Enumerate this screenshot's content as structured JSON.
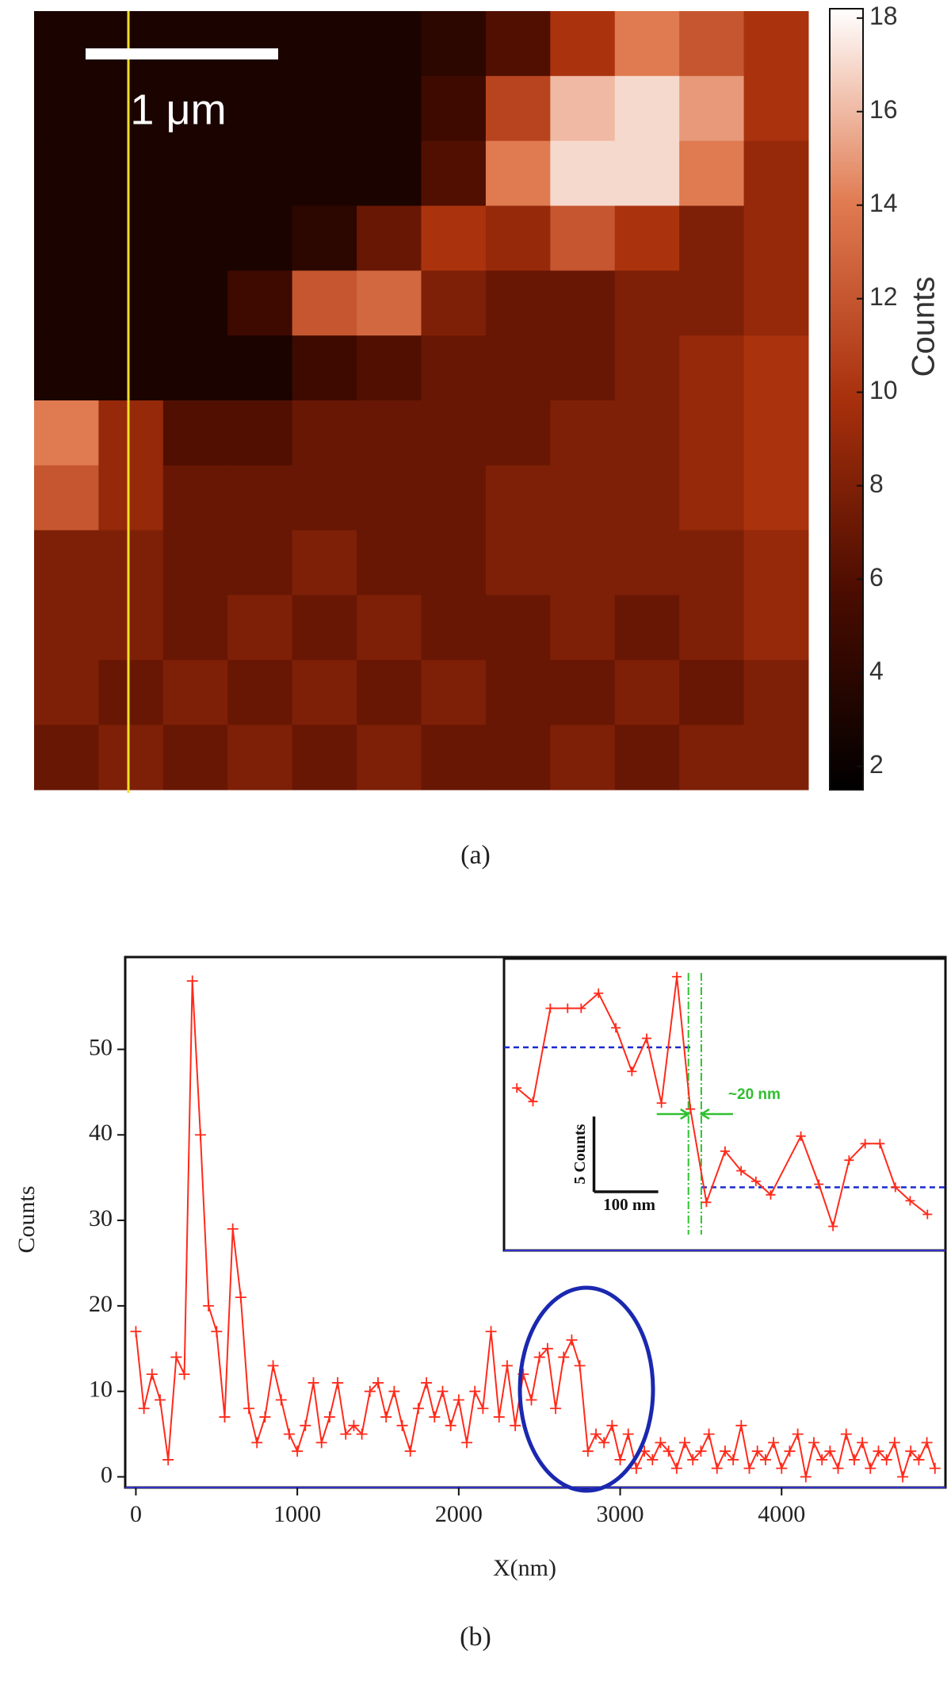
{
  "chart_data": [
    {
      "type": "heatmap",
      "panel_label": "(a)",
      "scale_bar_label": "1 μm",
      "colorbar_label": "Counts",
      "clim": [
        1.5,
        18.2
      ],
      "colorbar_ticks": [
        2,
        4,
        6,
        8,
        10,
        12,
        14,
        16,
        18
      ],
      "colormap": [
        "#000000",
        "#4a0c00",
        "#a8300c",
        "#e07a50",
        "#ffffff"
      ],
      "line_color": "#f0e020",
      "z": [
        [
          3,
          3,
          3,
          3,
          3,
          3,
          4,
          6,
          10,
          14,
          12,
          10
        ],
        [
          3,
          3,
          3,
          3,
          3,
          3,
          5,
          11,
          16,
          17,
          15,
          10
        ],
        [
          3,
          3,
          3,
          3,
          3,
          3,
          6,
          14,
          17,
          17,
          14,
          9
        ],
        [
          3,
          3,
          3,
          3,
          4,
          7,
          10,
          9,
          12,
          10,
          8,
          9
        ],
        [
          3,
          3,
          3,
          5,
          12,
          13,
          8,
          7,
          7,
          8,
          8,
          9
        ],
        [
          3,
          3,
          3,
          3,
          5,
          6,
          7,
          7,
          7,
          8,
          9,
          10
        ],
        [
          14,
          9,
          6,
          6,
          7,
          7,
          7,
          7,
          8,
          8,
          9,
          10
        ],
        [
          12,
          9,
          7,
          7,
          7,
          7,
          7,
          8,
          8,
          8,
          9,
          10
        ],
        [
          8,
          8,
          7,
          7,
          8,
          7,
          7,
          8,
          8,
          8,
          8,
          9
        ],
        [
          8,
          8,
          7,
          8,
          7,
          8,
          7,
          7,
          8,
          7,
          8,
          9
        ],
        [
          8,
          7,
          8,
          7,
          8,
          7,
          8,
          7,
          7,
          8,
          7,
          8
        ],
        [
          7,
          8,
          7,
          8,
          7,
          8,
          7,
          7,
          8,
          7,
          8,
          8
        ]
      ]
    },
    {
      "type": "line",
      "panel_label": "(b)",
      "x_label": "X(nm)",
      "y_label": "Counts",
      "color": "#ff2a1a",
      "xlim": [
        -66,
        5015
      ],
      "ylim": [
        -1.25,
        60.8
      ],
      "xticks": [
        0,
        1000,
        2000,
        3000,
        4000
      ],
      "yticks": [
        0,
        10,
        20,
        30,
        40,
        50
      ],
      "x": [
        0,
        50,
        100,
        150,
        200,
        250,
        300,
        350,
        400,
        450,
        500,
        550,
        600,
        650,
        700,
        750,
        800,
        850,
        900,
        950,
        1000,
        1050,
        1100,
        1150,
        1200,
        1250,
        1300,
        1350,
        1400,
        1450,
        1500,
        1550,
        1600,
        1650,
        1700,
        1750,
        1800,
        1850,
        1900,
        1950,
        2000,
        2050,
        2100,
        2150,
        2200,
        2250,
        2300,
        2350,
        2400,
        2450,
        2500,
        2550,
        2600,
        2650,
        2700,
        2750,
        2800,
        2850,
        2900,
        2950,
        3000,
        3050,
        3100,
        3150,
        3200,
        3250,
        3300,
        3350,
        3400,
        3450,
        3500,
        3550,
        3600,
        3650,
        3700,
        3750,
        3800,
        3850,
        3900,
        3950,
        4000,
        4050,
        4100,
        4150,
        4200,
        4250,
        4300,
        4350,
        4400,
        4450,
        4500,
        4550,
        4600,
        4650,
        4700,
        4750,
        4800,
        4850,
        4900,
        4950
      ],
      "values": [
        17,
        8,
        12,
        9,
        2,
        14,
        12,
        58,
        40,
        20,
        17,
        7,
        29,
        21,
        8,
        4,
        7,
        13,
        9,
        5,
        3,
        6,
        11,
        4,
        7,
        11,
        5,
        6,
        5,
        10,
        11,
        7,
        10,
        6,
        3,
        8,
        11,
        7,
        10,
        6,
        9,
        4,
        10,
        8,
        17,
        7,
        13,
        6,
        12,
        9,
        14,
        15,
        8,
        14,
        16,
        13,
        3,
        5,
        4,
        6,
        2,
        5,
        1,
        3,
        2,
        4,
        3,
        1,
        4,
        2,
        3,
        5,
        1,
        3,
        2,
        6,
        1,
        3,
        2,
        4,
        1,
        3,
        5,
        0,
        4,
        2,
        3,
        1,
        5,
        2,
        4,
        1,
        3,
        2,
        4,
        0,
        3,
        2,
        4,
        1
      ]
    },
    {
      "type": "line",
      "inset": true,
      "color": "#ff2a1a",
      "xlim": [
        -12,
        675
      ],
      "ylim": [
        -1.2,
        18.2
      ],
      "x": [
        8,
        33,
        60,
        87,
        108,
        135,
        162,
        187,
        210,
        233,
        257,
        278,
        303,
        332,
        357,
        380,
        403,
        450,
        478,
        500,
        525,
        550,
        573,
        597,
        620,
        647
      ],
      "values": [
        9.6,
        8.7,
        14.9,
        14.9,
        14.9,
        15.9,
        13.6,
        10.7,
        12.9,
        8.6,
        17.0,
        8.2,
        2.0,
        5.4,
        4.1,
        3.4,
        2.5,
        6.4,
        3.2,
        0.4,
        4.8,
        5.9,
        5.9,
        3.0,
        2.1,
        1.2
      ],
      "levels": [
        {
          "value": 12.3,
          "from": -12,
          "to": 278
        },
        {
          "value": 3.0,
          "from": 295,
          "to": 675
        }
      ],
      "level_color": "#1a2ad0",
      "edges": [
        275,
        295
      ],
      "edge_color": "#30c030",
      "width_label": "~20 nm",
      "scale_bar": {
        "x": 128,
        "y": 2.7,
        "dx": 100,
        "dy": 5,
        "x_label": "100 nm",
        "y_label": "5 Counts"
      }
    }
  ]
}
